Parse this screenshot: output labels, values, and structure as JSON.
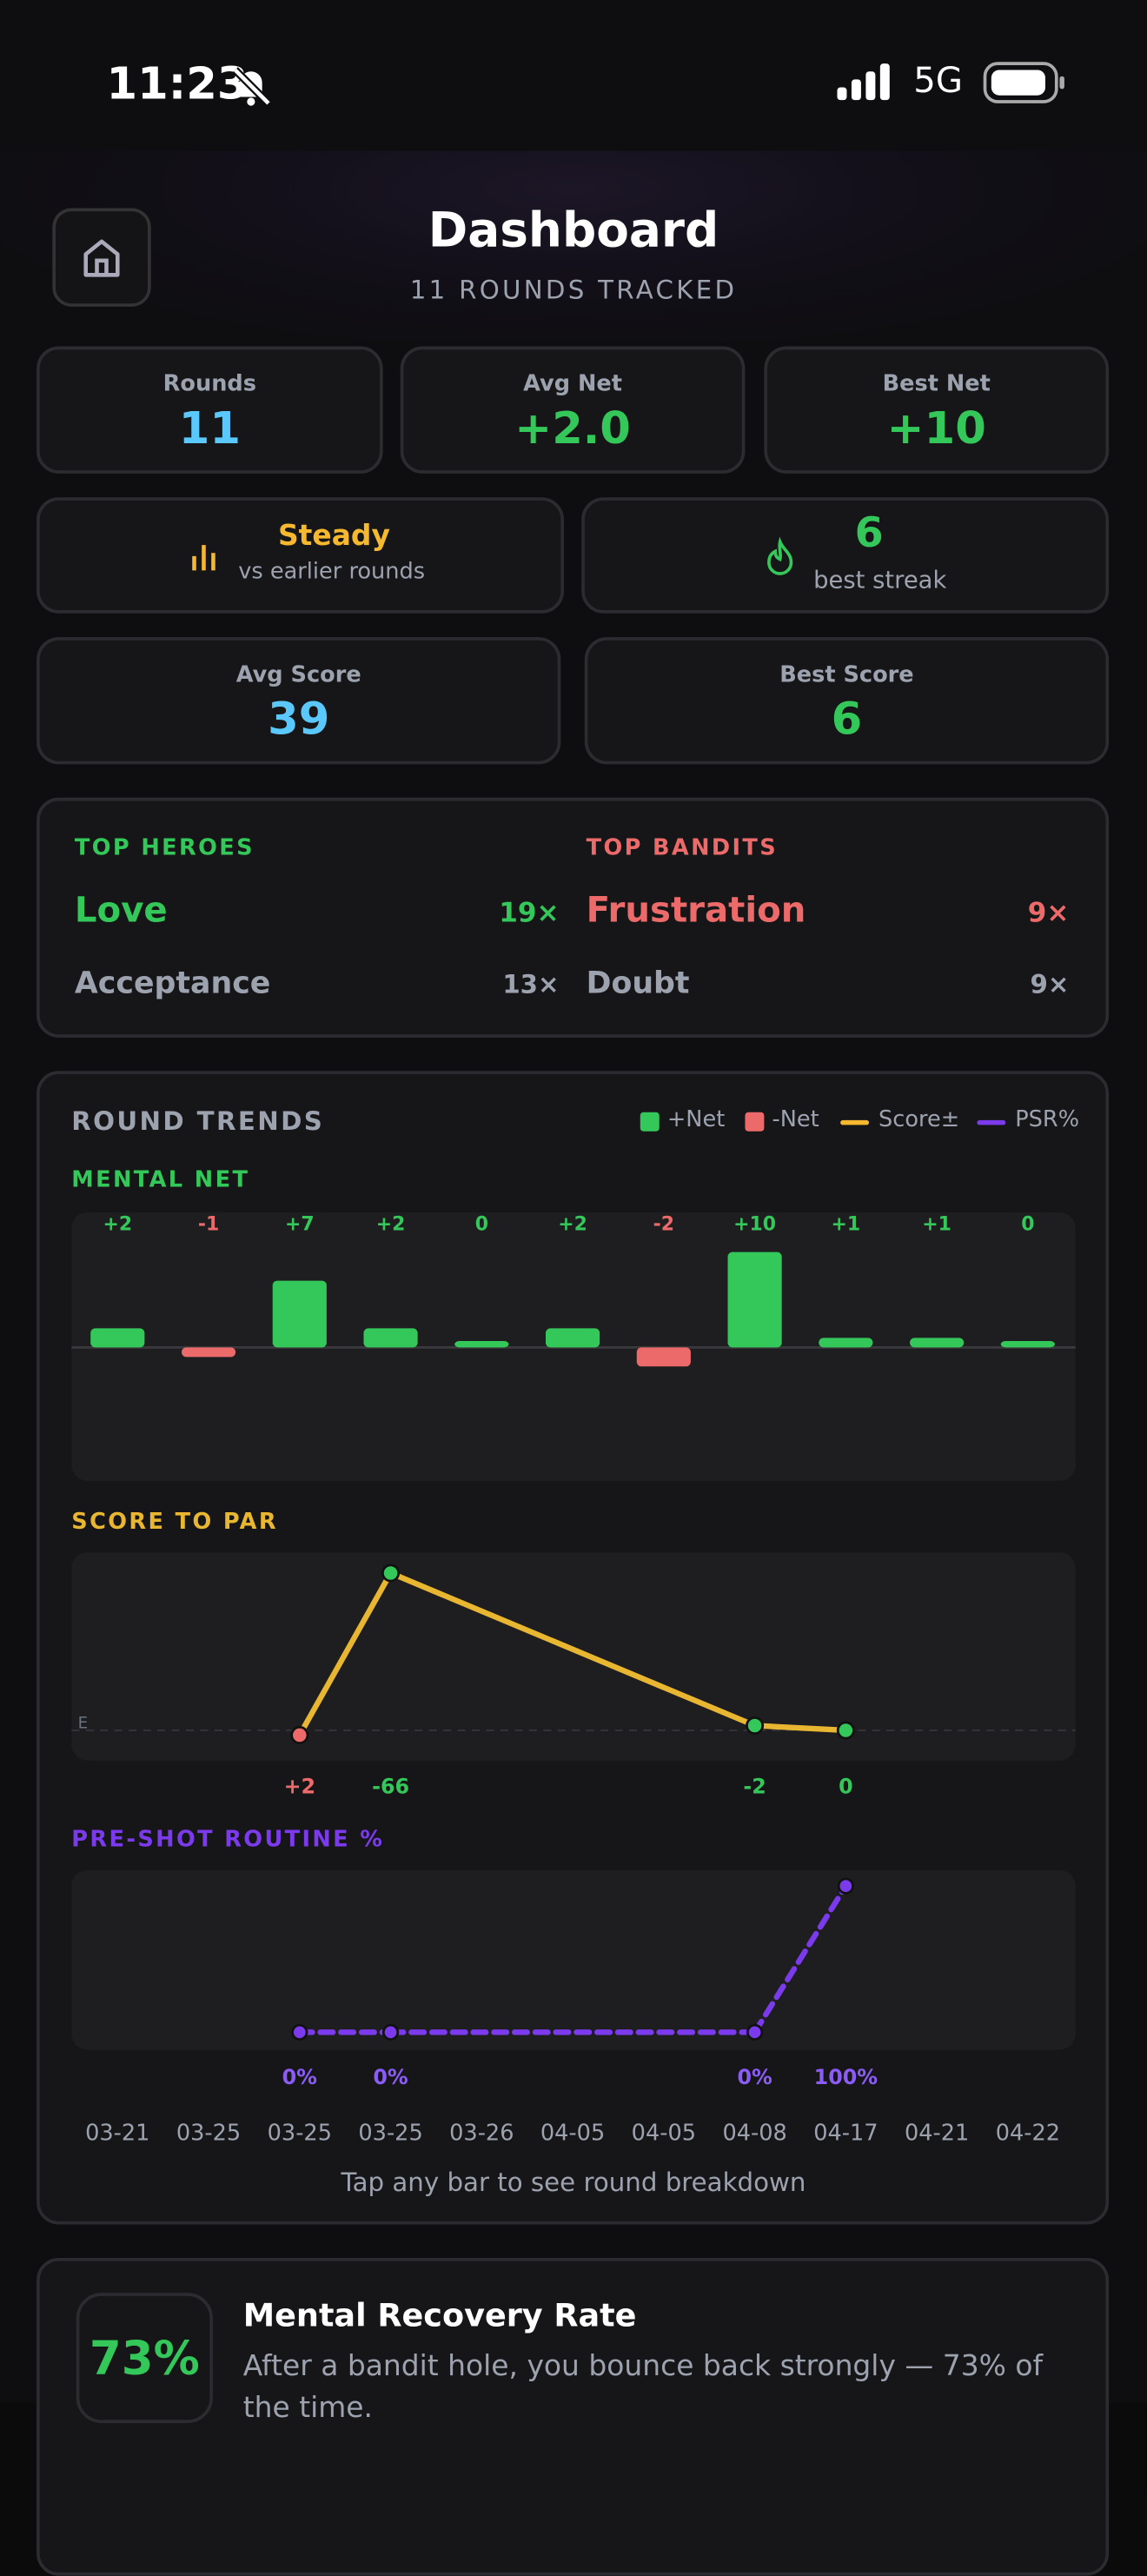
{
  "status_bar": {
    "time": "11:23",
    "network": "5G"
  },
  "header": {
    "title": "Dashboard",
    "subtitle": "11 ROUNDS TRACKED"
  },
  "stats": [
    {
      "label": "Rounds",
      "value": "11"
    },
    {
      "label": "Avg Net",
      "value": "+2.0"
    },
    {
      "label": "Best Net",
      "value": "+10"
    }
  ],
  "trend": {
    "label": "Steady",
    "caption": "vs earlier rounds"
  },
  "streak": {
    "value": "6",
    "caption": "best streak"
  },
  "scores": [
    {
      "label": "Avg Score",
      "value": "39"
    },
    {
      "label": "Best Score",
      "value": "6"
    }
  ],
  "heroes": {
    "title": "TOP HEROES",
    "items": [
      {
        "name": "Love",
        "count": "19×"
      },
      {
        "name": "Acceptance",
        "count": "13×"
      }
    ]
  },
  "bandits": {
    "title": "TOP BANDITS",
    "items": [
      {
        "name": "Frustration",
        "count": "9×"
      },
      {
        "name": "Doubt",
        "count": "9×"
      }
    ]
  },
  "round_trends": {
    "title": "ROUND TRENDS",
    "legend": [
      "+Net",
      "-Net",
      "Score±",
      "PSR%"
    ],
    "dates": [
      "03-21",
      "03-25",
      "03-25",
      "03-25",
      "03-26",
      "04-05",
      "04-05",
      "04-08",
      "04-17",
      "04-21",
      "04-22"
    ],
    "mental_net": {
      "title": "MENTAL NET",
      "values": [
        2,
        -1,
        7,
        2,
        0,
        2,
        -2,
        10,
        1,
        1,
        0
      ],
      "value_labels": [
        "+2",
        "-1",
        "+7",
        "+2",
        "0",
        "+2",
        "-2",
        "+10",
        "+1",
        "+1",
        "0"
      ]
    },
    "score_to_par": {
      "title": "SCORE TO PAR",
      "baseline_label": "E",
      "values": [
        null,
        null,
        2,
        -66,
        null,
        null,
        null,
        -2,
        0,
        null,
        null
      ],
      "value_labels": [
        null,
        null,
        "+2",
        "-66",
        null,
        null,
        null,
        "-2",
        "0",
        null,
        null
      ]
    },
    "psr": {
      "title": "PRE-SHOT ROUTINE %",
      "values": [
        null,
        null,
        0,
        0,
        null,
        null,
        null,
        0,
        100,
        null,
        null
      ],
      "value_labels": [
        null,
        null,
        "0%",
        "0%",
        null,
        null,
        null,
        "0%",
        "100%",
        null,
        null
      ]
    },
    "hint": "Tap any bar to see round breakdown"
  },
  "recovery": {
    "value": "73%",
    "title": "Mental Recovery Rate",
    "text": "After a bandit hole, you bounce back strongly — 73% of the time."
  }
}
